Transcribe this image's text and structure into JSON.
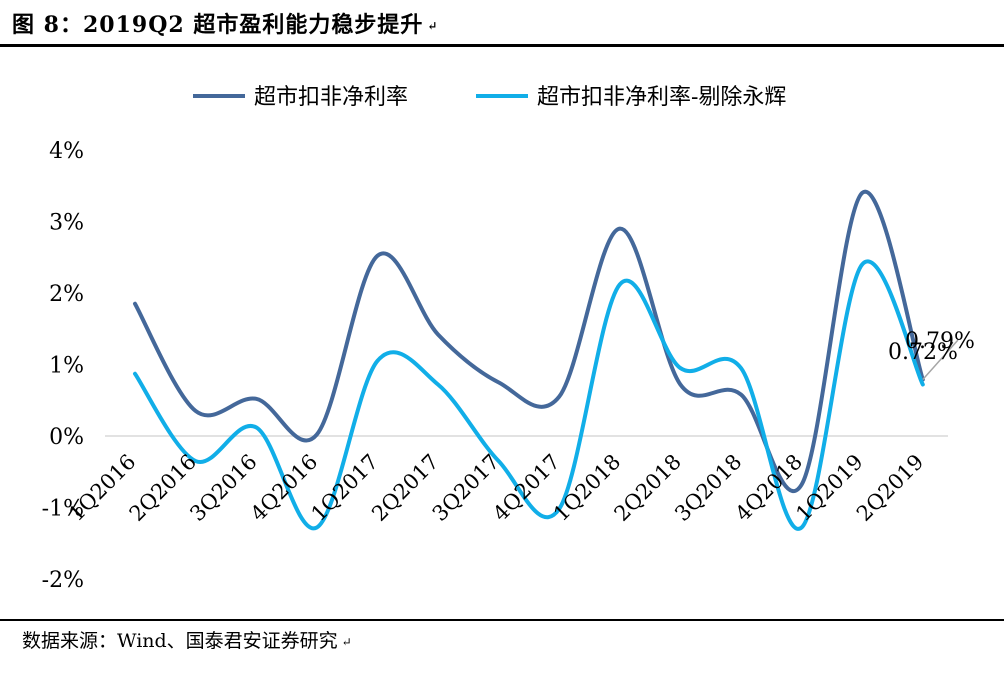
{
  "header": {
    "title": "图 8：2019Q2 超市盈利能力稳步提升",
    "mark": "↵"
  },
  "footer": {
    "source": "数据来源：Wind、国泰君安证券研究",
    "mark": "↵"
  },
  "chart_data": {
    "type": "line",
    "smooth": true,
    "categories": [
      "1Q2016",
      "2Q2016",
      "3Q2016",
      "4Q2016",
      "1Q2017",
      "2Q2017",
      "3Q2017",
      "4Q2017",
      "1Q2018",
      "2Q2018",
      "3Q2018",
      "4Q2018",
      "1Q2019",
      "2Q2019"
    ],
    "series": [
      {
        "name": "超市扣非净利率",
        "color": "#44689a",
        "values": [
          1.85,
          0.35,
          0.52,
          0.02,
          2.52,
          1.42,
          0.75,
          0.55,
          2.9,
          0.72,
          0.58,
          -0.68,
          3.4,
          0.79
        ]
      },
      {
        "name": "超市扣非净利率-剔除永辉",
        "color": "#11aee8",
        "values": [
          0.87,
          -0.35,
          0.12,
          -1.28,
          1.05,
          0.72,
          -0.35,
          -1.02,
          2.12,
          0.95,
          0.95,
          -1.28,
          2.4,
          0.72
        ]
      }
    ],
    "yticks": [
      "4%",
      "3%",
      "2%",
      "1%",
      "0%",
      "-1%",
      "-2%"
    ],
    "ylim": [
      -2,
      4
    ],
    "annotations": [
      "0.79%",
      "0.72%"
    ],
    "legend_position": "top",
    "grid": false
  }
}
